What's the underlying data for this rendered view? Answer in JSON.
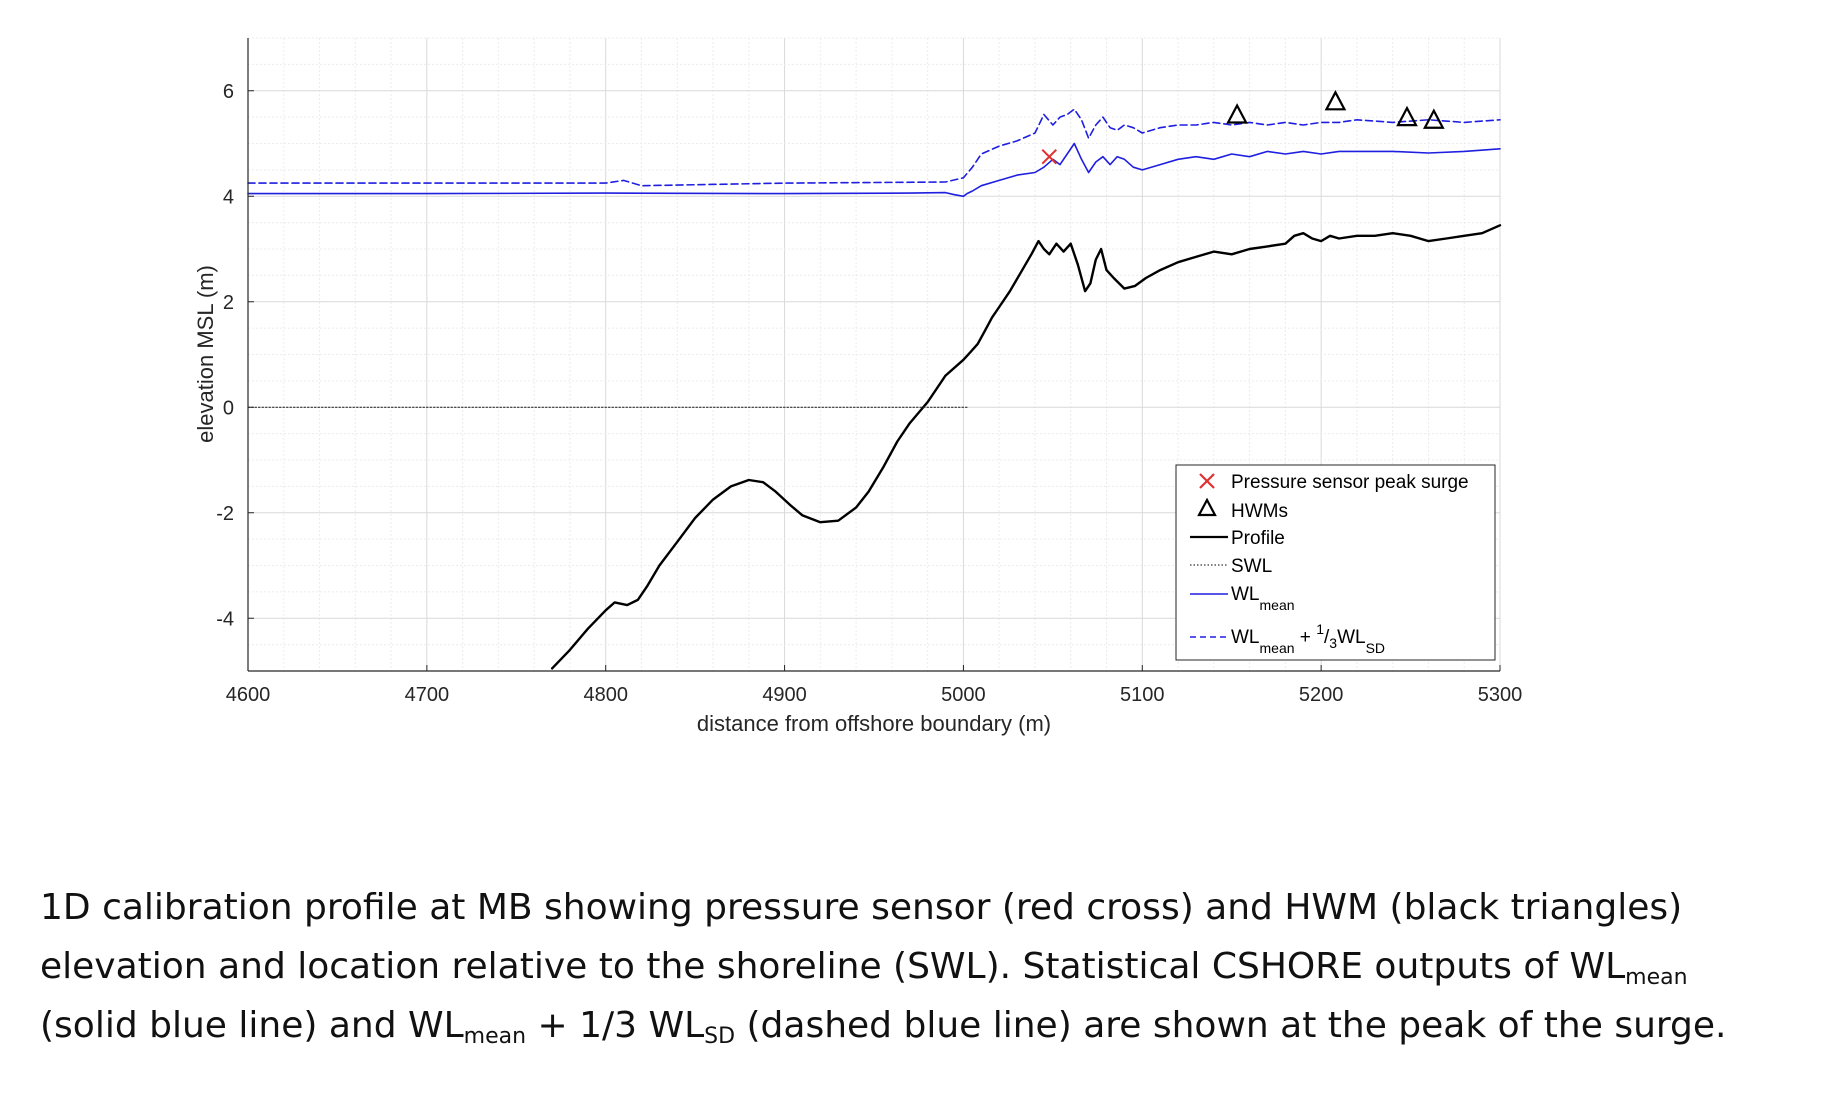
{
  "chart_data": {
    "type": "line",
    "xlabel": "distance from offshore boundary (m)",
    "ylabel": "elevation MSL (m)",
    "xlim": [
      4600,
      5300
    ],
    "ylim": [
      -5,
      7
    ],
    "xticks": [
      4600,
      4700,
      4800,
      4900,
      5000,
      5100,
      5200,
      5300
    ],
    "yticks": [
      -4,
      -2,
      0,
      2,
      4,
      6
    ],
    "grid": "on (major and minor)",
    "legend_position": "bottom-right",
    "legend": [
      {
        "key": "sensor",
        "text": "Pressure sensor peak surge"
      },
      {
        "key": "hwm",
        "text": "HWMs"
      },
      {
        "key": "profile",
        "text": "Profile"
      },
      {
        "key": "swl",
        "text": "SWL"
      },
      {
        "key": "wlmean",
        "text": "WL",
        "sub": "mean"
      },
      {
        "key": "wlsd",
        "text": "WL",
        "sub": "mean",
        "plus": " + ",
        "frac_num": "1",
        "frac_den": "3",
        "text2": "WL",
        "sub2": "SD"
      }
    ],
    "colors": {
      "profile": "#000000",
      "swl": "#333333",
      "wl": "#1f1fe0",
      "sensor": "#e03030",
      "hwm": "#000000"
    },
    "series": [
      {
        "key": "profile",
        "style": "solid-black",
        "x": [
          4770,
          4780,
          4790,
          4800,
          4805,
          4812,
          4818,
          4823,
          4830,
          4840,
          4850,
          4860,
          4870,
          4880,
          4888,
          4895,
          4903,
          4910,
          4920,
          4930,
          4940,
          4947,
          4955,
          4963,
          4970,
          4980,
          4990,
          5000,
          5004,
          5008,
          5012,
          5016,
          5020,
          5026,
          5032,
          5038,
          5042,
          5045,
          5048,
          5052,
          5056,
          5060,
          5064,
          5068,
          5071,
          5074,
          5077,
          5080,
          5084,
          5090,
          5096,
          5102,
          5110,
          5120,
          5130,
          5140,
          5150,
          5160,
          5170,
          5180,
          5185,
          5190,
          5195,
          5200,
          5205,
          5210,
          5220,
          5230,
          5240,
          5250,
          5260,
          5270,
          5280,
          5290,
          5300
        ],
        "y": [
          -4.95,
          -4.6,
          -4.2,
          -3.85,
          -3.7,
          -3.75,
          -3.65,
          -3.4,
          -3.0,
          -2.55,
          -2.1,
          -1.75,
          -1.5,
          -1.38,
          -1.42,
          -1.6,
          -1.85,
          -2.05,
          -2.18,
          -2.15,
          -1.9,
          -1.6,
          -1.15,
          -0.65,
          -0.3,
          0.1,
          0.6,
          0.9,
          1.05,
          1.2,
          1.45,
          1.7,
          1.9,
          2.2,
          2.55,
          2.9,
          3.15,
          3.0,
          2.9,
          3.1,
          2.95,
          3.1,
          2.7,
          2.2,
          2.35,
          2.8,
          3.0,
          2.6,
          2.45,
          2.25,
          2.3,
          2.45,
          2.6,
          2.75,
          2.85,
          2.95,
          2.9,
          3.0,
          3.05,
          3.1,
          3.25,
          3.3,
          3.2,
          3.15,
          3.25,
          3.2,
          3.25,
          3.25,
          3.3,
          3.25,
          3.15,
          3.2,
          3.25,
          3.3,
          3.45
        ]
      },
      {
        "key": "swl",
        "style": "dotted",
        "x": [
          4600,
          5002
        ],
        "y": [
          0,
          0
        ]
      },
      {
        "key": "wlmean",
        "style": "solid-blue",
        "x": [
          4600,
          4700,
          4800,
          4900,
          4970,
          4990,
          4995,
          5000,
          5002,
          5005,
          5010,
          5020,
          5030,
          5040,
          5045,
          5050,
          5054,
          5058,
          5062,
          5066,
          5070,
          5074,
          5078,
          5082,
          5086,
          5090,
          5095,
          5100,
          5110,
          5120,
          5130,
          5140,
          5150,
          5160,
          5170,
          5180,
          5190,
          5200,
          5210,
          5220,
          5240,
          5260,
          5280,
          5300
        ],
        "y": [
          4.05,
          4.05,
          4.06,
          4.05,
          4.06,
          4.07,
          4.03,
          4.0,
          4.05,
          4.1,
          4.2,
          4.3,
          4.4,
          4.45,
          4.55,
          4.7,
          4.6,
          4.8,
          5.0,
          4.7,
          4.45,
          4.65,
          4.75,
          4.6,
          4.75,
          4.7,
          4.55,
          4.5,
          4.6,
          4.7,
          4.75,
          4.7,
          4.8,
          4.75,
          4.85,
          4.8,
          4.85,
          4.8,
          4.85,
          4.85,
          4.85,
          4.82,
          4.85,
          4.9
        ]
      },
      {
        "key": "wlsd",
        "style": "dashed-blue",
        "x": [
          4600,
          4800,
          4810,
          4820,
          4900,
          4990,
          5000,
          5005,
          5010,
          5020,
          5030,
          5040,
          5045,
          5050,
          5054,
          5058,
          5062,
          5066,
          5070,
          5074,
          5078,
          5082,
          5086,
          5090,
          5095,
          5100,
          5110,
          5120,
          5130,
          5140,
          5150,
          5160,
          5170,
          5180,
          5190,
          5200,
          5210,
          5220,
          5240,
          5260,
          5280,
          5300
        ],
        "y": [
          4.25,
          4.25,
          4.3,
          4.2,
          4.25,
          4.27,
          4.35,
          4.55,
          4.8,
          4.95,
          5.05,
          5.2,
          5.55,
          5.35,
          5.5,
          5.55,
          5.65,
          5.45,
          5.1,
          5.35,
          5.5,
          5.3,
          5.25,
          5.35,
          5.3,
          5.2,
          5.3,
          5.35,
          5.35,
          5.4,
          5.35,
          5.4,
          5.35,
          5.4,
          5.35,
          5.4,
          5.4,
          5.45,
          5.4,
          5.45,
          5.4,
          5.45
        ]
      }
    ],
    "points": [
      {
        "key": "sensor",
        "marker": "x",
        "x": [
          5048
        ],
        "y": [
          4.75
        ]
      },
      {
        "key": "hwm",
        "marker": "triangle",
        "x": [
          5153,
          5208,
          5248,
          5263
        ],
        "y": [
          5.55,
          5.8,
          5.5,
          5.45
        ]
      }
    ]
  },
  "caption": {
    "line1": "1D calibration profile at MB showing pressure sensor (red cross) and HWM (black triangles)",
    "line2_a": "elevation and location relative to the shoreline (SWL). Statistical CSHORE outputs of WL",
    "line2_sub": "mean",
    "line3_a": "(solid blue line) and WL",
    "line3_sub1": "mean",
    "line3_b": " + 1/3 WL",
    "line3_sub2": "SD",
    "line3_c": " (dashed blue line) are shown at the peak of the surge."
  }
}
